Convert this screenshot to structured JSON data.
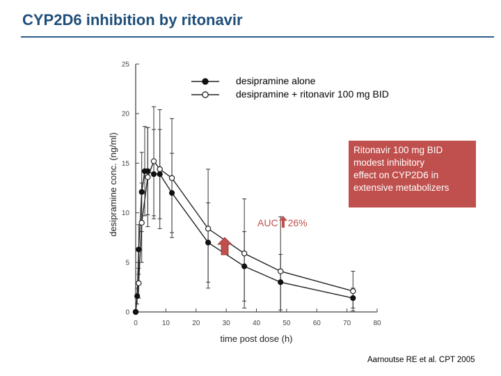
{
  "slide": {
    "title": "CYP2D6 inhibition by ritonavir",
    "callout_lines": [
      "Ritonavir 100 mg BID",
      "modest inhibitory",
      "effect on CYP2D6 in",
      "extensive metabolizers"
    ],
    "auc_label": "AUC",
    "auc_change": "26%",
    "citation": "Aarnoutse RE et al. CPT 2005",
    "colors": {
      "title": "#1f4e79",
      "accent": "#c0504d",
      "rule": "#2e5c8a"
    }
  },
  "chart_data": {
    "type": "line",
    "xlabel": "time post dose (h)",
    "ylabel": "desipramine conc. (ng/ml)",
    "xlim": [
      0,
      80
    ],
    "ylim": [
      0,
      25
    ],
    "xticks": [
      "0",
      "10",
      "20",
      "30",
      "40",
      "50",
      "60",
      "70",
      "80"
    ],
    "yticks": [
      "0",
      "5",
      "10",
      "15",
      "20",
      "25"
    ],
    "grid": false,
    "legend_position": "top",
    "series": [
      {
        "name": "desipramine alone",
        "marker": "filled-circle",
        "x": [
          0,
          0.5,
          1,
          2,
          3,
          4,
          6,
          8,
          12,
          24,
          36,
          48,
          72
        ],
        "y": [
          0,
          1.6,
          6.3,
          12.1,
          14.2,
          14.2,
          13.9,
          13.9,
          12.0,
          7.0,
          4.6,
          3.0,
          1.4
        ],
        "err": [
          0,
          0.8,
          2.5,
          4.0,
          4.5,
          4.4,
          4.5,
          4.5,
          4.0,
          4.0,
          3.5,
          2.8,
          1.0
        ]
      },
      {
        "name": "desipramine + ritonavir 100 mg BID",
        "marker": "open-circle",
        "x": [
          0,
          1,
          2,
          4,
          6,
          8,
          12,
          24,
          36,
          48,
          72
        ],
        "y": [
          0,
          2.9,
          9.0,
          13.6,
          15.2,
          14.4,
          13.5,
          8.4,
          5.9,
          4.1,
          2.1
        ],
        "err": [
          0,
          1.5,
          4.0,
          5.0,
          5.5,
          6.0,
          6.0,
          6.0,
          5.5,
          5.5,
          2.0
        ]
      }
    ]
  }
}
